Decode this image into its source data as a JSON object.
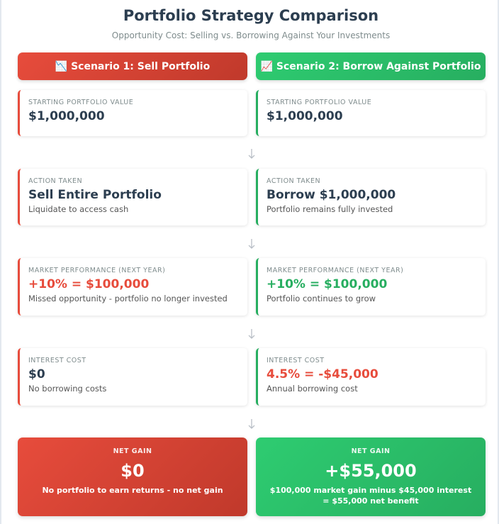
{
  "header": {
    "title": "Portfolio Strategy Comparison",
    "subtitle": "Opportunity Cost: Selling vs. Borrowing Against Your Investments"
  },
  "scenarios": [
    {
      "heading": "📉 Scenario 1: Sell Portfolio",
      "steps": [
        {
          "label": "STARTING PORTFOLIO VALUE",
          "value": "$1,000,000"
        },
        {
          "label": "ACTION TAKEN",
          "value": "Sell Entire Portfolio",
          "note": "Liquidate to access cash"
        },
        {
          "label": "MARKET PERFORMANCE (NEXT YEAR)",
          "value": "+10% = $100,000",
          "note": "Missed opportunity - portfolio no longer invested"
        },
        {
          "label": "INTEREST COST",
          "value": "$0",
          "note": "No borrowing costs"
        }
      ],
      "result": {
        "label": "NET GAIN",
        "value": "$0",
        "note": "No portfolio to earn returns - no net gain"
      }
    },
    {
      "heading": "📈 Scenario 2: Borrow Against Portfolio",
      "steps": [
        {
          "label": "STARTING PORTFOLIO VALUE",
          "value": "$1,000,000"
        },
        {
          "label": "ACTION TAKEN",
          "value": "Borrow $1,000,000",
          "note": "Portfolio remains fully invested"
        },
        {
          "label": "MARKET PERFORMANCE (NEXT YEAR)",
          "value": "+10% = $100,000",
          "note": "Portfolio continues to grow"
        },
        {
          "label": "INTEREST COST",
          "value": "4.5% = -$45,000",
          "note": "Annual borrowing cost"
        }
      ],
      "result": {
        "label": "NET GAIN",
        "value": "+$55,000",
        "note": "$100,000 market gain minus $45,000 interest = $55,000 net benefit"
      }
    }
  ]
}
